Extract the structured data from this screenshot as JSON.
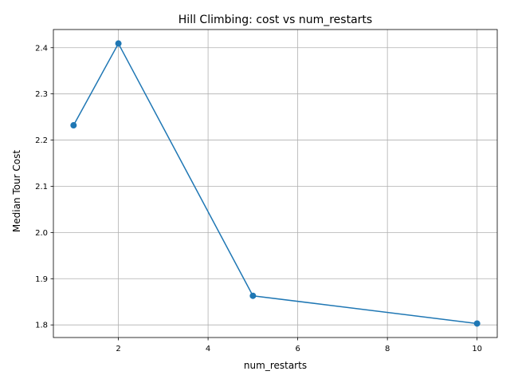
{
  "chart_data": {
    "type": "line",
    "title": "Hill Climbing: cost vs num_restarts",
    "xlabel": "num_restarts",
    "ylabel": "Median Tour Cost",
    "x": [
      1,
      2,
      5,
      10
    ],
    "series": [
      {
        "values": [
          2.232,
          2.409,
          1.863,
          1.803
        ],
        "color": "#1f77b4",
        "marker": "circle"
      }
    ],
    "xlim": [
      0.55,
      10.45
    ],
    "ylim": [
      1.7727,
      2.4393
    ],
    "xticks": [
      2,
      4,
      6,
      8,
      10
    ],
    "xtick_labels": [
      "2",
      "4",
      "6",
      "8",
      "10"
    ],
    "yticks": [
      1.8,
      1.9,
      2.0,
      2.1,
      2.2,
      2.3,
      2.4
    ],
    "ytick_labels": [
      "1.8",
      "1.9",
      "2.0",
      "2.1",
      "2.2",
      "2.3",
      "2.4"
    ],
    "grid": true,
    "legend": "none"
  }
}
